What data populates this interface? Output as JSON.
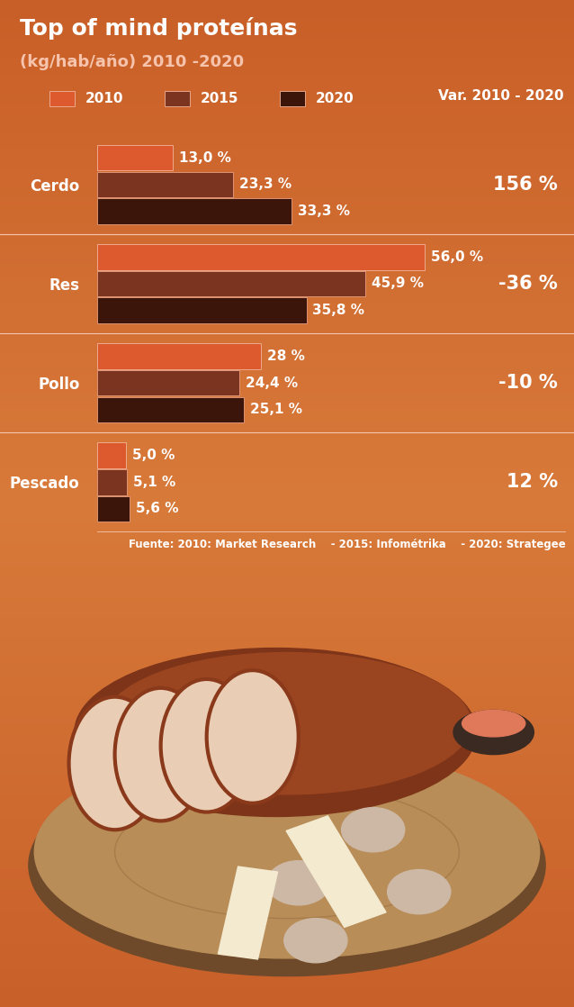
{
  "chart_data": {
    "type": "bar",
    "orientation": "horizontal",
    "title": "Top of mind proteínas",
    "subtitle": "(kg/hab/año) 2010 -2020",
    "categories": [
      "Cerdo",
      "Res",
      "Pollo",
      "Pescado"
    ],
    "series": [
      {
        "name": "2010",
        "color": "#dc5a2e",
        "values": [
          13.0,
          56.0,
          28,
          5.0
        ],
        "value_labels": [
          "13,0 %",
          "56,0 %",
          "28 %",
          "5,0 %"
        ]
      },
      {
        "name": "2015",
        "color": "#7b3420",
        "values": [
          23.3,
          45.9,
          24.4,
          5.1
        ],
        "value_labels": [
          "23,3 %",
          "45,9 %",
          "24,4 %",
          "5,1 %"
        ]
      },
      {
        "name": "2020",
        "color": "#3b150a",
        "values": [
          33.3,
          35.8,
          25.1,
          5.6
        ],
        "value_labels": [
          "33,3 %",
          "35,8 %",
          "25,1 %",
          "5,6 %"
        ]
      }
    ],
    "variation": {
      "title": "Var. 2010 - 2020",
      "values": [
        156,
        -36,
        -10,
        12
      ],
      "value_labels": [
        "156 %",
        "-36 %",
        "-10 %",
        "12 %"
      ]
    },
    "source": "Fuente: 2010: Market Research    - 2015: Infométrika    - 2020: Strategee",
    "xlim": [
      0,
      80
    ],
    "data_labels": true,
    "tick_labels": "y",
    "legend": "upper left",
    "grid": false
  }
}
